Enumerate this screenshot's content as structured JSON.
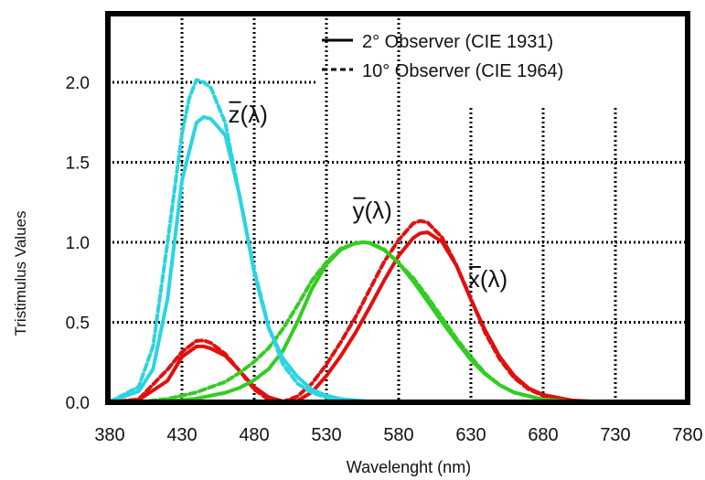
{
  "chart_data": {
    "type": "line",
    "title": "",
    "xlabel": "Wavelenght (nm)",
    "ylabel": "Tristimulus Values",
    "xlim": [
      380,
      780
    ],
    "ylim": [
      0,
      2.3
    ],
    "xticks": [
      380,
      430,
      480,
      530,
      580,
      630,
      680,
      730,
      780
    ],
    "xtick_labels": [
      "380",
      "430",
      "480",
      "530",
      "580",
      "630",
      "680",
      "730",
      "780"
    ],
    "yticks": [
      0,
      0.5,
      1.0,
      1.5,
      2.0
    ],
    "ytick_labels": [
      "0.0",
      "0.5",
      "1.0",
      "1.5",
      "2.0"
    ],
    "grid": true,
    "legend": {
      "position": "top-right",
      "entries": [
        {
          "label": "2° Observer (CIE 1931)",
          "style": "solid"
        },
        {
          "label": "10° Observer (CIE 1964)",
          "style": "dashed"
        }
      ]
    },
    "annotations": [
      {
        "text": "z(λ)",
        "x": 462,
        "y": 1.75
      },
      {
        "text": "y(λ)",
        "x": 548,
        "y": 1.15
      },
      {
        "text": "x(λ)",
        "x": 628,
        "y": 0.72
      }
    ],
    "series": [
      {
        "name": "x(λ)",
        "observer": "2°",
        "style": "solid",
        "color": "#e01010",
        "x": [
          380,
          400,
          420,
          430,
          440,
          445,
          450,
          460,
          470,
          480,
          490,
          500,
          510,
          520,
          530,
          540,
          550,
          560,
          570,
          580,
          590,
          595,
          600,
          610,
          620,
          630,
          640,
          650,
          660,
          670,
          680,
          700,
          720
        ],
        "y": [
          0.0014,
          0.0143,
          0.1344,
          0.2839,
          0.3483,
          0.35,
          0.3362,
          0.2908,
          0.1954,
          0.0956,
          0.032,
          0.0049,
          0.0093,
          0.0633,
          0.1655,
          0.2904,
          0.4334,
          0.5945,
          0.7621,
          0.9163,
          1.0263,
          1.0567,
          1.0622,
          1.0026,
          0.8544,
          0.6424,
          0.4479,
          0.2835,
          0.1649,
          0.0874,
          0.0468,
          0.0114,
          0.0029
        ]
      },
      {
        "name": "x(λ)",
        "observer": "10°",
        "style": "dashed",
        "color": "#e01010",
        "x": [
          380,
          400,
          420,
          430,
          440,
          445,
          450,
          460,
          470,
          480,
          490,
          500,
          510,
          520,
          530,
          540,
          550,
          560,
          570,
          580,
          590,
          595,
          600,
          610,
          620,
          630,
          640,
          650,
          660,
          670,
          680,
          700,
          720
        ],
        "y": [
          0.0002,
          0.0191,
          0.2045,
          0.3147,
          0.3837,
          0.387,
          0.3707,
          0.3023,
          0.1956,
          0.0805,
          0.0162,
          0.0038,
          0.0375,
          0.1177,
          0.2365,
          0.3768,
          0.5298,
          0.7052,
          0.8787,
          1.0142,
          1.1185,
          1.1335,
          1.124,
          1.0305,
          0.8563,
          0.6475,
          0.4316,
          0.2683,
          0.1526,
          0.0813,
          0.0409,
          0.0096,
          0.0022
        ]
      },
      {
        "name": "y(λ)",
        "observer": "2°",
        "style": "solid",
        "color": "#33cc22",
        "x": [
          380,
          400,
          420,
          440,
          460,
          470,
          480,
          490,
          500,
          510,
          520,
          530,
          540,
          550,
          555,
          560,
          570,
          580,
          590,
          600,
          610,
          620,
          630,
          640,
          650,
          660,
          680,
          700,
          720
        ],
        "y": [
          0.0,
          0.0004,
          0.004,
          0.023,
          0.06,
          0.091,
          0.139,
          0.208,
          0.323,
          0.503,
          0.71,
          0.862,
          0.954,
          0.995,
          1.0,
          0.995,
          0.952,
          0.87,
          0.757,
          0.631,
          0.503,
          0.381,
          0.265,
          0.175,
          0.107,
          0.061,
          0.017,
          0.0041,
          0.001
        ]
      },
      {
        "name": "y(λ)",
        "observer": "10°",
        "style": "dashed",
        "color": "#33cc22",
        "x": [
          380,
          400,
          420,
          440,
          460,
          470,
          480,
          490,
          500,
          510,
          520,
          530,
          540,
          550,
          555,
          560,
          570,
          580,
          590,
          600,
          610,
          620,
          630,
          640,
          650,
          660,
          680,
          700,
          720
        ],
        "y": [
          0.0,
          0.002,
          0.0214,
          0.0621,
          0.1282,
          0.1852,
          0.2536,
          0.3391,
          0.4608,
          0.6067,
          0.7618,
          0.8752,
          0.962,
          0.9918,
          1.0,
          0.9973,
          0.9555,
          0.8689,
          0.7774,
          0.6583,
          0.528,
          0.3981,
          0.2835,
          0.1798,
          0.1076,
          0.0603,
          0.0159,
          0.0037,
          0.0008
        ]
      },
      {
        "name": "z(λ)",
        "observer": "2°",
        "style": "solid",
        "color": "#2bd4e0",
        "x": [
          380,
          400,
          410,
          420,
          430,
          440,
          445,
          450,
          460,
          470,
          480,
          490,
          500,
          510,
          520,
          530,
          540,
          560,
          580,
          600
        ],
        "y": [
          0.0065,
          0.0679,
          0.2074,
          0.6456,
          1.3856,
          1.7471,
          1.7826,
          1.7721,
          1.6692,
          1.2876,
          0.813,
          0.4652,
          0.272,
          0.1582,
          0.0782,
          0.0422,
          0.0203,
          0.0039,
          0.0017,
          0.0008
        ]
      },
      {
        "name": "z(λ)",
        "observer": "10°",
        "style": "dashed",
        "color": "#2bd4e0",
        "x": [
          380,
          400,
          410,
          420,
          430,
          435,
          440,
          445,
          450,
          460,
          470,
          480,
          490,
          500,
          510,
          520,
          530,
          540,
          560,
          580,
          600
        ],
        "y": [
          0.0026,
          0.0962,
          0.3505,
          0.9972,
          1.6773,
          1.9,
          2.015,
          2.0,
          1.9657,
          1.7459,
          1.2825,
          0.8287,
          0.4707,
          0.2355,
          0.1171,
          0.0608,
          0.0305,
          0.0137,
          0.0019,
          0.0,
          0.0
        ]
      }
    ]
  }
}
